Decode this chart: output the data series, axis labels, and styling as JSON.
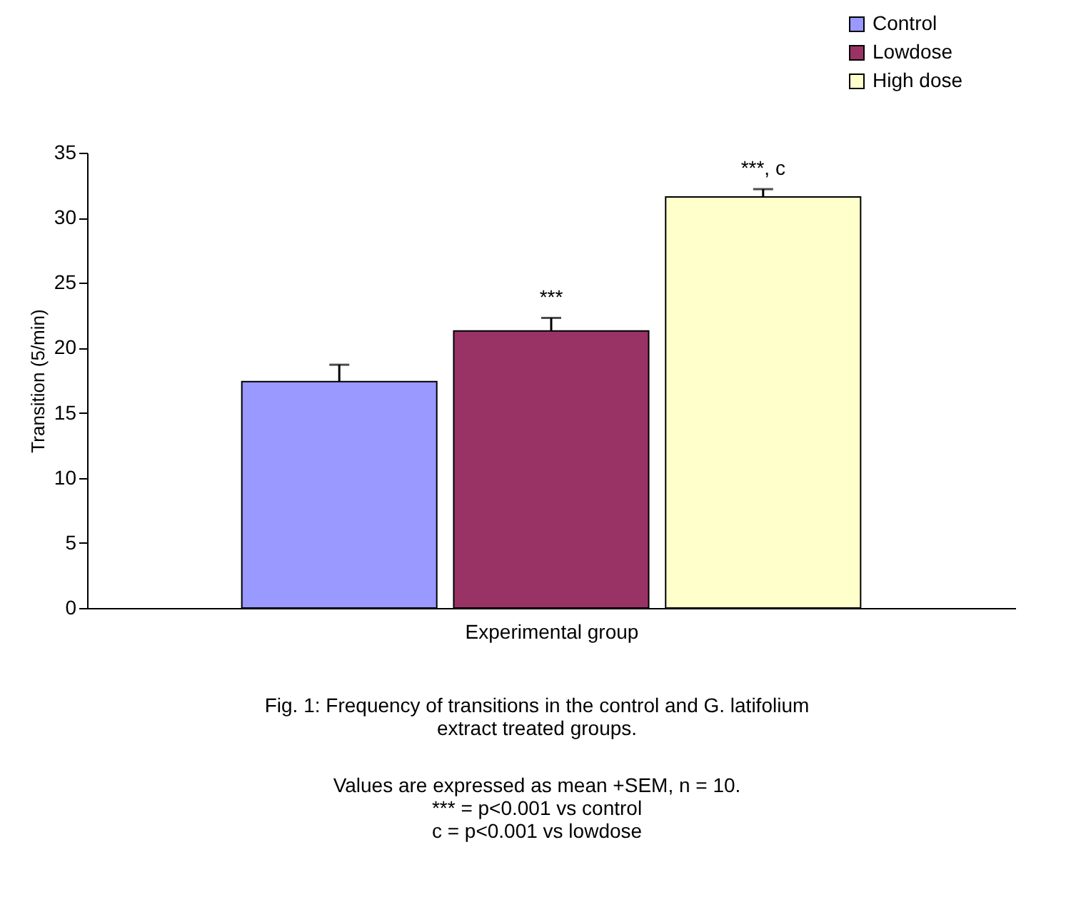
{
  "chart_data": {
    "type": "bar",
    "categories": [
      null
    ],
    "xlabel": "Experimental group",
    "ylabel": "Transition (5/min)",
    "series": [
      {
        "name": "Control",
        "color": "#9999ff",
        "values": [
          17.4
        ],
        "errors": [
          [
            17.4,
            18.7
          ]
        ]
      },
      {
        "name": "Lowdose",
        "color": "#993366",
        "values": [
          21.3
        ],
        "errors": [
          [
            21.3,
            22.3
          ]
        ]
      },
      {
        "name": "High dose",
        "color": "#ffffcc",
        "values": [
          31.6
        ],
        "errors": [
          [
            31.6,
            32.2
          ]
        ]
      }
    ],
    "ylim": [
      0,
      35
    ],
    "yticks": [
      0,
      5,
      10,
      15,
      20,
      25,
      30,
      35
    ],
    "grid": false,
    "legend": "top right",
    "annotations": [
      {
        "text": "***",
        "y": 22.3
      },
      {
        "text": "***, c",
        "y": 32.2
      },
      "Fig. 1: Frequency of transitions in the control and G. latifolium extract treated groups.",
      "Values are expressed as mean +SEM, n = 10.",
      "*** = p<0.001 vs control",
      "c = p<0.001 vs lowdose"
    ]
  }
}
